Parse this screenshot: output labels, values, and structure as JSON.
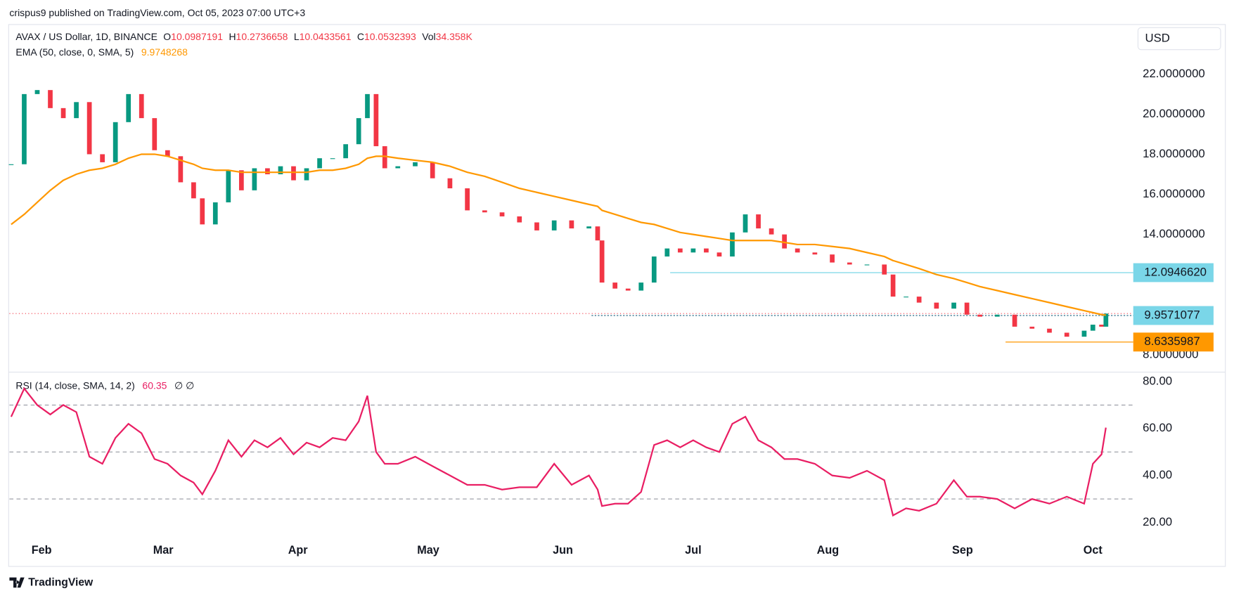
{
  "header": {
    "publisher": "crispus9 published on TradingView.com, Oct 05, 2023 07:00 UTC+3",
    "logo": "TradingView"
  },
  "chart_data": {
    "type": "candlestick",
    "symbol": "AVAX / US Dollar, 1D, BINANCE",
    "currency": "USD",
    "ohlc_legend": {
      "open_key": "O",
      "open": 10.0987191,
      "high_key": "H",
      "high": 10.2736658,
      "low_key": "L",
      "low": 10.0433561,
      "close_key": "C",
      "vol_key": "Vol",
      "vol": "34.358K"
    },
    "x": [
      -7,
      -4,
      -1,
      2,
      5,
      8,
      11,
      14,
      17,
      20,
      23,
      26,
      29,
      32,
      35,
      37,
      40,
      43,
      46,
      49,
      52,
      55,
      58,
      61,
      64,
      67,
      70,
      73,
      75,
      77,
      79,
      82,
      86,
      90,
      94,
      98,
      102,
      106,
      110,
      114,
      118,
      122,
      126,
      128,
      129,
      132,
      135,
      138,
      141,
      144,
      147,
      150,
      153,
      156,
      159,
      162,
      165,
      168,
      171,
      174,
      178,
      182,
      186,
      190,
      194,
      196,
      199,
      202,
      206,
      210,
      213,
      216,
      220,
      224,
      228,
      232,
      236,
      240,
      242,
      244,
      245
    ],
    "closes": [
      17.5,
      21.0,
      21.2,
      20.3,
      19.8,
      20.6,
      18.0,
      17.6,
      19.6,
      21.0,
      19.8,
      18.2,
      17.9,
      16.6,
      15.8,
      14.5,
      15.6,
      17.2,
      16.2,
      17.3,
      17.0,
      17.4,
      16.7,
      17.3,
      17.8,
      17.8,
      18.5,
      19.8,
      21.0,
      18.4,
      17.3,
      17.4,
      17.6,
      16.8,
      16.3,
      15.2,
      15.1,
      14.9,
      14.6,
      14.2,
      14.7,
      14.3,
      14.4,
      13.7,
      11.6,
      11.3,
      11.2,
      11.6,
      12.9,
      13.3,
      13.1,
      13.3,
      13.1,
      12.9,
      14.1,
      15.0,
      14.3,
      14.0,
      13.3,
      13.1,
      13.0,
      12.6,
      12.5,
      12.5,
      12.0,
      10.9,
      10.9,
      10.6,
      10.3,
      10.6,
      10.0,
      9.9,
      10.0,
      9.4,
      9.3,
      9.1,
      8.9,
      9.2,
      9.5,
      9.4,
      10.0532393
    ],
    "up_color": "#089981",
    "down_color": "#f23645",
    "ema": {
      "name": "EMA (50, close, 0, SMA, 5)",
      "color": "#ff9800",
      "values": [
        14.5,
        15.0,
        15.6,
        16.2,
        16.7,
        17.0,
        17.2,
        17.3,
        17.5,
        17.8,
        18.0,
        18.0,
        17.9,
        17.7,
        17.5,
        17.3,
        17.2,
        17.2,
        17.1,
        17.1,
        17.1,
        17.1,
        17.1,
        17.1,
        17.2,
        17.2,
        17.3,
        17.5,
        17.8,
        17.9,
        17.9,
        17.8,
        17.7,
        17.6,
        17.4,
        17.1,
        16.9,
        16.6,
        16.3,
        16.1,
        15.9,
        15.7,
        15.5,
        15.4,
        15.2,
        15.0,
        14.8,
        14.6,
        14.5,
        14.3,
        14.1,
        14.0,
        13.9,
        13.8,
        13.7,
        13.7,
        13.7,
        13.7,
        13.6,
        13.5,
        13.5,
        13.4,
        13.3,
        13.1,
        12.9,
        12.7,
        12.5,
        12.3,
        12.0,
        11.8,
        11.6,
        11.4,
        11.2,
        11.0,
        10.8,
        10.6,
        10.4,
        10.2,
        10.1,
        10.0,
        9.9748268
      ]
    },
    "levels": [
      {
        "value": 12.094662,
        "label": "12.0946620",
        "color": "#7ad6e8",
        "start_x": 144.7,
        "dashed": false
      },
      {
        "value": 9.9571077,
        "label": "9.9571077",
        "color": "#7ad6e8",
        "start_x": 126.6,
        "dashed": true
      },
      {
        "value": 8.6335987,
        "label": "8.6335987",
        "color": "#ff9800",
        "start_x": 221.9,
        "dashed": false
      }
    ],
    "xlim": [
      -7.4,
      251.3
    ],
    "xticks": [
      {
        "value": 0,
        "label": "Feb"
      },
      {
        "value": 28,
        "label": "Mar"
      },
      {
        "value": 59,
        "label": "Apr"
      },
      {
        "value": 89,
        "label": "May"
      },
      {
        "value": 120,
        "label": "Jun"
      },
      {
        "value": 150,
        "label": "Jul"
      },
      {
        "value": 181,
        "label": "Aug"
      },
      {
        "value": 212,
        "label": "Sep"
      },
      {
        "value": 242,
        "label": "Oct"
      }
    ],
    "ylim": [
      7.25,
      24.43
    ],
    "yticks": [
      {
        "value": 8,
        "label": "8.0000000"
      },
      {
        "value": 14,
        "label": "14.0000000"
      },
      {
        "value": 16,
        "label": "16.0000000"
      },
      {
        "value": 18,
        "label": "18.0000000"
      },
      {
        "value": 20,
        "label": "20.0000000"
      },
      {
        "value": 22,
        "label": "22.0000000"
      }
    ],
    "rsi": {
      "name": "RSI (14, close, SMA, 14, 2)",
      "extra": "∅ ∅",
      "color": "#e91e63",
      "values": [
        65,
        77,
        70,
        66,
        70,
        67,
        48,
        45,
        56,
        62,
        58,
        47,
        45,
        40,
        37,
        32,
        42,
        55,
        48,
        55,
        52,
        56,
        49,
        54,
        52,
        56,
        55,
        63,
        74,
        50,
        45,
        45,
        48,
        44,
        40,
        36,
        36,
        34,
        35,
        35,
        45,
        36,
        40,
        34,
        27,
        28,
        28,
        33,
        53,
        55,
        52,
        55,
        52,
        50,
        62,
        65,
        55,
        52,
        47,
        47,
        45,
        40,
        39,
        42,
        38,
        23,
        26,
        25,
        28,
        38,
        31,
        31,
        30,
        26,
        30,
        28,
        31,
        28,
        45,
        49,
        60.35
      ],
      "ylim": [
        11.33,
        82.33
      ],
      "yticks": [
        {
          "value": 20,
          "label": "20.00"
        },
        {
          "value": 40,
          "label": "40.00"
        },
        {
          "value": 60,
          "label": "60.00"
        },
        {
          "value": 80,
          "label": "80.00"
        }
      ],
      "bands": [
        30,
        50,
        70
      ]
    }
  }
}
